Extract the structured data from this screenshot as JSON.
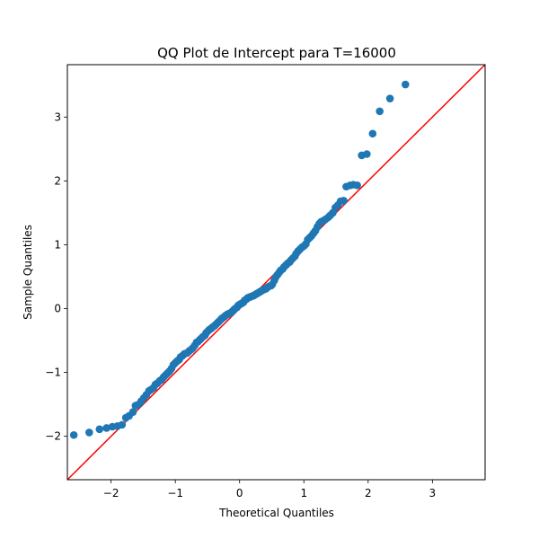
{
  "chart_data": {
    "type": "scatter",
    "title": "QQ Plot de Intercept para T=16000",
    "xlabel": "Theoretical Quantiles",
    "ylabel": "Sample Quantiles",
    "xlim": [
      -2.68,
      3.82
    ],
    "ylim": [
      -2.68,
      3.82
    ],
    "xticks": [
      -2,
      -1,
      0,
      1,
      2,
      3
    ],
    "xtick_labels": [
      "−2",
      "−1",
      "0",
      "1",
      "2",
      "3"
    ],
    "yticks": [
      -2,
      -1,
      0,
      1,
      2,
      3
    ],
    "ytick_labels": [
      "−2",
      "−1",
      "0",
      "1",
      "2",
      "3"
    ],
    "grid": false,
    "colors": {
      "points": "#1f77b4",
      "reference_line": "#ff0000"
    },
    "reference_line": {
      "slope": 1,
      "intercept": 0
    },
    "points": {
      "x": [
        -2.58,
        -2.34,
        -2.18,
        -2.07,
        -1.98,
        -1.9,
        -1.83,
        -1.77,
        -1.72,
        -1.66,
        -1.62,
        -1.57,
        -1.53,
        -1.49,
        -1.45,
        -1.41,
        -1.38,
        -1.34,
        -1.31,
        -1.28,
        -1.24,
        -1.21,
        -1.18,
        -1.15,
        -1.12,
        -1.09,
        -1.06,
        -1.03,
        -1.0,
        -0.97,
        -0.94,
        -0.92,
        -0.89,
        -0.86,
        -0.83,
        -0.81,
        -0.78,
        -0.75,
        -0.73,
        -0.7,
        -0.67,
        -0.65,
        -0.62,
        -0.6,
        -0.57,
        -0.54,
        -0.52,
        -0.49,
        -0.47,
        -0.44,
        -0.42,
        -0.39,
        -0.37,
        -0.34,
        -0.32,
        -0.29,
        -0.27,
        -0.24,
        -0.22,
        -0.19,
        -0.17,
        -0.14,
        -0.12,
        -0.09,
        -0.07,
        -0.04,
        -0.02,
        0.01,
        0.03,
        0.06,
        0.08,
        0.11,
        0.13,
        0.16,
        0.18,
        0.21,
        0.23,
        0.26,
        0.28,
        0.31,
        0.33,
        0.36,
        0.38,
        0.41,
        0.43,
        0.46,
        0.49,
        0.51,
        0.54,
        0.56,
        0.59,
        0.62,
        0.64,
        0.67,
        0.69,
        0.72,
        0.75,
        0.78,
        0.8,
        0.83,
        0.86,
        0.88,
        0.91,
        0.94,
        0.97,
        1.0,
        1.03,
        1.06,
        1.09,
        1.12,
        1.15,
        1.18,
        1.21,
        1.24,
        1.27,
        1.31,
        1.34,
        1.38,
        1.41,
        1.45,
        1.49,
        1.53,
        1.57,
        1.62,
        1.66,
        1.72,
        1.77,
        1.83,
        1.9,
        1.98,
        2.07,
        2.18,
        2.34,
        2.58
      ],
      "y": [
        -1.98,
        -1.94,
        -1.89,
        -1.87,
        -1.85,
        -1.84,
        -1.82,
        -1.71,
        -1.68,
        -1.62,
        -1.52,
        -1.5,
        -1.45,
        -1.4,
        -1.35,
        -1.29,
        -1.27,
        -1.24,
        -1.19,
        -1.17,
        -1.13,
        -1.11,
        -1.07,
        -1.04,
        -1.01,
        -0.98,
        -0.94,
        -0.88,
        -0.85,
        -0.82,
        -0.8,
        -0.76,
        -0.74,
        -0.71,
        -0.7,
        -0.69,
        -0.66,
        -0.64,
        -0.62,
        -0.58,
        -0.53,
        -0.52,
        -0.49,
        -0.47,
        -0.44,
        -0.42,
        -0.38,
        -0.35,
        -0.33,
        -0.31,
        -0.29,
        -0.27,
        -0.25,
        -0.22,
        -0.2,
        -0.17,
        -0.15,
        -0.13,
        -0.11,
        -0.09,
        -0.08,
        -0.07,
        -0.05,
        -0.02,
        0.0,
        0.02,
        0.05,
        0.07,
        0.08,
        0.1,
        0.13,
        0.15,
        0.17,
        0.18,
        0.19,
        0.2,
        0.21,
        0.23,
        0.24,
        0.26,
        0.27,
        0.29,
        0.3,
        0.31,
        0.33,
        0.35,
        0.36,
        0.38,
        0.44,
        0.49,
        0.53,
        0.57,
        0.6,
        0.62,
        0.65,
        0.68,
        0.71,
        0.73,
        0.76,
        0.79,
        0.82,
        0.86,
        0.9,
        0.93,
        0.96,
        0.98,
        1.01,
        1.08,
        1.11,
        1.14,
        1.18,
        1.22,
        1.28,
        1.33,
        1.36,
        1.38,
        1.4,
        1.43,
        1.46,
        1.5,
        1.58,
        1.62,
        1.68,
        1.69,
        1.91,
        1.93,
        1.94,
        1.93,
        2.4,
        2.42,
        2.74,
        3.09,
        3.29,
        3.51
      ]
    }
  }
}
